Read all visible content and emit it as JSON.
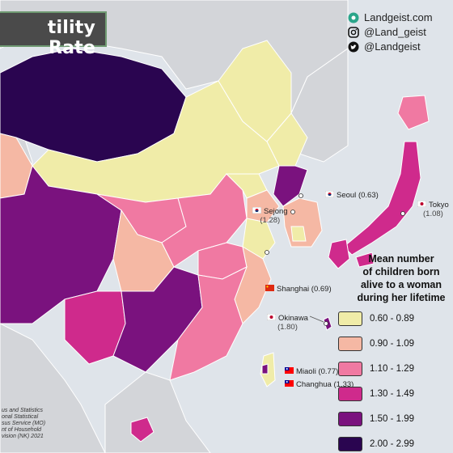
{
  "title": "tility Rate",
  "social": [
    {
      "icon": "landgeist-logo-icon",
      "handle": "Landgeist.com"
    },
    {
      "icon": "instagram-icon",
      "handle": "@Land_geist"
    },
    {
      "icon": "twitter-icon",
      "handle": "@Landgeist"
    }
  ],
  "legend": {
    "title_lines": [
      "Mean number",
      "of children born",
      "alive to a woman",
      "during her lifetime"
    ],
    "items": [
      {
        "label": "0.60 - 0.89",
        "color": "#f0eca8"
      },
      {
        "label": "0.90 - 1.09",
        "color": "#f5b8a4"
      },
      {
        "label": "1.10 - 1.29",
        "color": "#f079a2"
      },
      {
        "label": "1.30 - 1.49",
        "color": "#cf2a8c"
      },
      {
        "label": "1.50 - 1.99",
        "color": "#7a127e"
      },
      {
        "label": "2.00 - 2.99",
        "color": "#2a0550"
      }
    ]
  },
  "cities": [
    {
      "name": "Seoul",
      "value": "(0.63)",
      "flag": "south-korea"
    },
    {
      "name": "Sejong",
      "value": "(1.28)",
      "flag": "south-korea"
    },
    {
      "name": "Tokyo",
      "value": "(1.08)",
      "flag": "japan"
    },
    {
      "name": "Shanghai",
      "value": "(0.69)",
      "flag": "china"
    },
    {
      "name": "Okinawa",
      "value": "(1.80)",
      "flag": "japan"
    },
    {
      "name": "Miaoli",
      "value": "(0.77)",
      "flag": "taiwan"
    },
    {
      "name": "Changhua",
      "value": "(1.33)",
      "flag": "taiwan"
    }
  ],
  "source_lines": [
    "us and Statistics",
    "onal Statistical",
    "sus Service (MO)",
    "nt of Household",
    "vision (NK) 2021"
  ]
}
